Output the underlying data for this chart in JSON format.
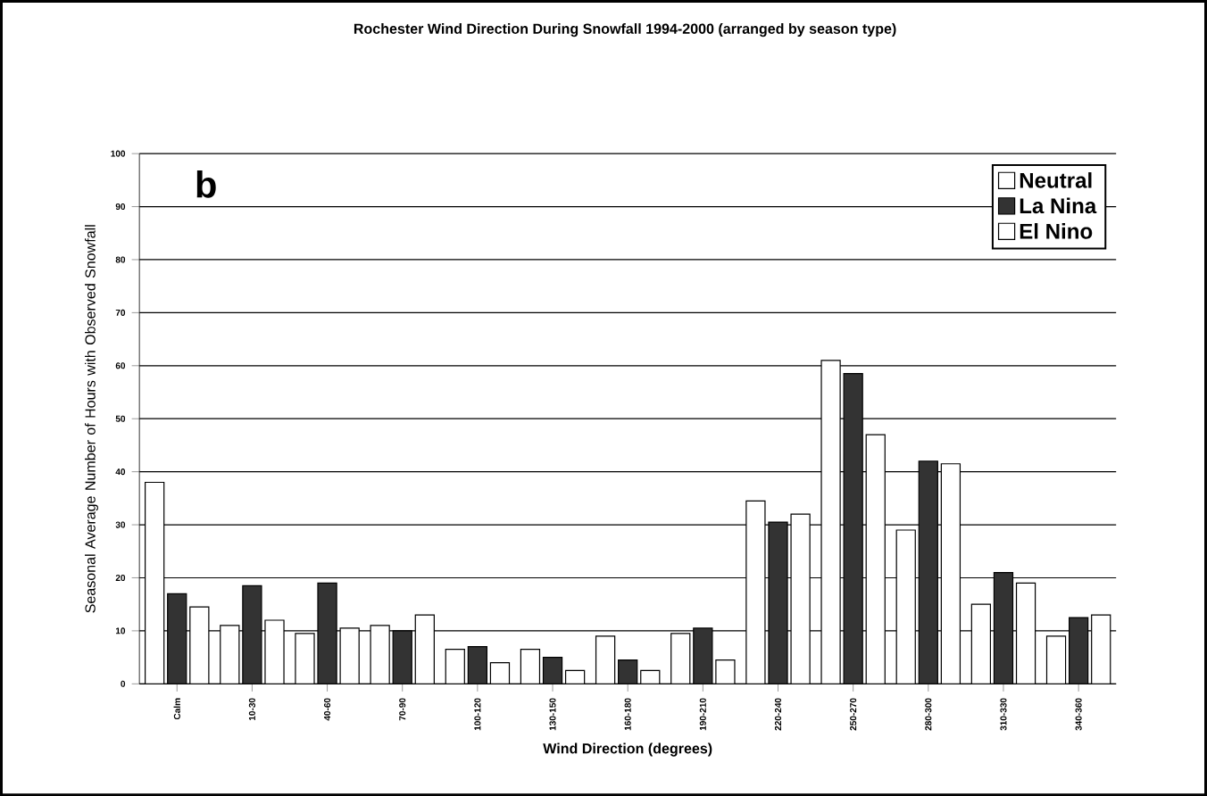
{
  "chart_data": {
    "type": "bar",
    "title": "Rochester Wind Direction During Snowfall 1994-2000 (arranged by season type)",
    "xlabel": "Wind Direction (degrees)",
    "ylabel": "Seasonal Average Number of Hours with Observed Snowfall",
    "categories": [
      "Calm",
      "10-30",
      "40-60",
      "70-90",
      "100-120",
      "130-150",
      "160-180",
      "190-210",
      "220-240",
      "250-270",
      "280-300",
      "310-330",
      "340-360"
    ],
    "series": [
      {
        "name": "Neutral",
        "color": "#ffffff",
        "values": [
          38,
          11,
          9.5,
          11,
          6.5,
          6.5,
          9,
          9.5,
          34.5,
          61,
          29,
          15,
          9
        ]
      },
      {
        "name": "La Nina",
        "color": "#333333",
        "values": [
          17,
          18.5,
          19,
          10,
          7,
          5,
          4.5,
          10.5,
          30.5,
          58.5,
          42,
          21,
          12.5
        ]
      },
      {
        "name": "El Nino",
        "color": "#ffffff",
        "values": [
          14.5,
          12,
          10.5,
          13,
          4,
          2.5,
          2.5,
          4.5,
          32,
          47,
          41.5,
          19,
          13
        ]
      }
    ],
    "ylim": [
      0,
      100
    ],
    "yticks": [
      0,
      10,
      20,
      30,
      40,
      50,
      60,
      70,
      80,
      90,
      100
    ],
    "grid": "y",
    "legend": "top right",
    "annotations": [
      "b"
    ]
  }
}
